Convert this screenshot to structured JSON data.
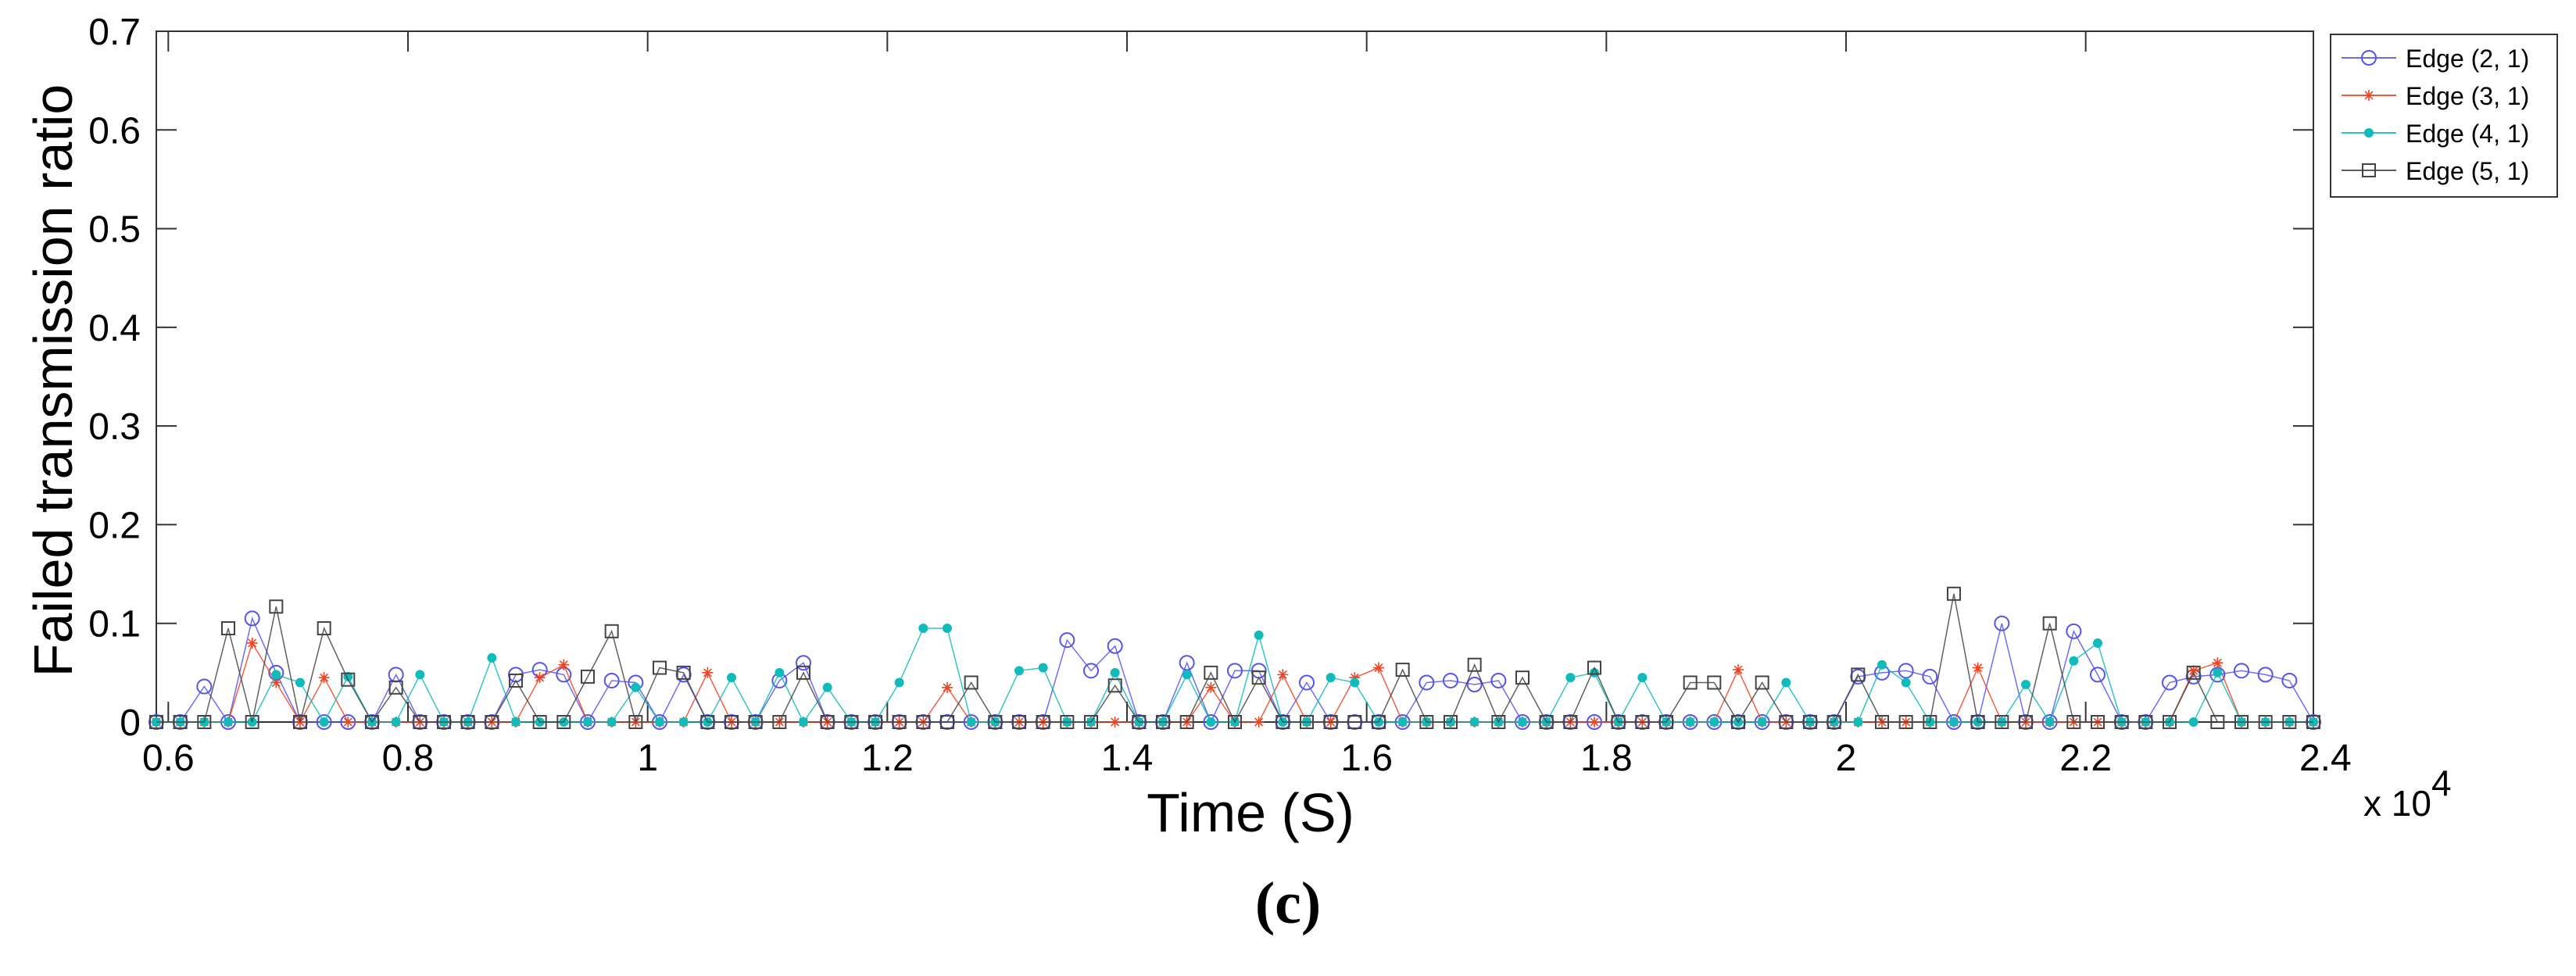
{
  "caption": "(c)",
  "chart_data": {
    "type": "line",
    "xlabel": "Time (S)",
    "ylabel": "Failed transmission ratio",
    "x_multiplier_label": "x 10",
    "x_multiplier_exponent": "4",
    "xlim": [
      0.59,
      2.39
    ],
    "ylim": [
      0,
      0.7
    ],
    "x_ticks": [
      0.6,
      0.8,
      1,
      1.2,
      1.4,
      1.6,
      1.8,
      2,
      2.2,
      2.4
    ],
    "x_tick_labels": [
      "0.6",
      "0.8",
      "1",
      "1.2",
      "1.4",
      "1.6",
      "1.8",
      "2",
      "2.2",
      "2.4"
    ],
    "y_ticks": [
      0,
      0.1,
      0.2,
      0.3,
      0.4,
      0.5,
      0.6,
      0.7
    ],
    "y_tick_labels": [
      "0",
      "0.1",
      "0.2",
      "0.3",
      "0.4",
      "0.5",
      "0.6",
      "0.7"
    ],
    "grid": false,
    "legend_position": "outside top-right",
    "x": [
      0.59,
      0.61,
      0.63,
      0.65,
      0.67,
      0.69,
      0.71,
      0.73,
      0.75,
      0.77,
      0.79,
      0.81,
      0.83,
      0.85,
      0.87,
      0.89,
      0.91,
      0.93,
      0.95,
      0.97,
      0.99,
      1.01,
      1.03,
      1.05,
      1.07,
      1.09,
      1.11,
      1.13,
      1.15,
      1.17,
      1.19,
      1.21,
      1.23,
      1.25,
      1.27,
      1.29,
      1.31,
      1.33,
      1.35,
      1.37,
      1.39,
      1.41,
      1.43,
      1.45,
      1.47,
      1.49,
      1.51,
      1.53,
      1.55,
      1.57,
      1.59,
      1.61,
      1.63,
      1.65,
      1.67,
      1.69,
      1.71,
      1.73,
      1.75,
      1.77,
      1.79,
      1.81,
      1.83,
      1.85,
      1.87,
      1.89,
      1.91,
      1.93,
      1.95,
      1.97,
      1.99,
      2.01,
      2.03,
      2.05,
      2.07,
      2.09,
      2.11,
      2.13,
      2.15,
      2.17,
      2.19,
      2.21,
      2.23,
      2.25,
      2.27,
      2.29,
      2.31,
      2.33,
      2.35,
      2.37,
      2.39
    ],
    "series": [
      {
        "name": "Edge (2, 1)",
        "color": "#5555ee",
        "marker": "circle",
        "values": [
          0,
          0,
          0.036,
          0,
          0.105,
          0.05,
          0,
          0,
          0,
          0,
          0.048,
          0,
          0,
          0,
          0,
          0.048,
          0.053,
          0.048,
          0,
          0.042,
          0.04,
          0,
          0.048,
          0,
          0,
          0,
          0.042,
          0.06,
          0,
          0,
          0,
          0,
          0,
          0,
          0,
          0,
          0,
          0,
          0.083,
          0.052,
          0.077,
          0,
          0,
          0.06,
          0,
          0.052,
          0.052,
          0,
          0.04,
          0,
          0,
          0,
          0,
          0.04,
          0.042,
          0.038,
          0.042,
          0,
          0,
          0,
          0,
          0,
          0,
          0,
          0,
          0,
          0,
          0,
          0,
          0,
          0,
          0.046,
          0.05,
          0.052,
          0.046,
          0,
          0,
          0.1,
          0,
          0,
          0.092,
          0.048,
          0,
          0,
          0.04,
          0.046,
          0.048,
          0.052,
          0.048,
          0.042,
          0
        ]
      },
      {
        "name": "Edge (3, 1)",
        "color": "#ee4422",
        "marker": "star",
        "values": [
          0,
          0,
          0,
          0,
          0.08,
          0.04,
          0,
          0.045,
          0,
          0,
          0,
          0,
          0,
          0,
          0,
          0,
          0.045,
          0.058,
          0,
          0,
          0,
          0,
          0,
          0.05,
          0,
          0,
          0,
          0,
          0,
          0,
          0,
          0,
          0,
          0.035,
          0,
          0,
          0,
          0,
          0,
          0,
          0,
          0,
          0,
          0,
          0.035,
          0,
          0,
          0.048,
          0,
          0,
          0.045,
          0.055,
          0,
          0,
          0,
          0,
          0,
          0,
          0,
          0,
          0,
          0,
          0,
          0,
          0,
          0,
          0.053,
          0,
          0,
          0,
          0,
          0,
          0,
          0,
          0,
          0,
          0.055,
          0,
          0,
          0,
          0,
          0,
          0,
          0,
          0,
          0.052,
          0.06,
          0,
          0,
          0,
          0
        ]
      },
      {
        "name": "Edge (4, 1)",
        "color": "#11bbbb",
        "marker": "dot",
        "values": [
          0,
          0,
          0,
          0,
          0,
          0.048,
          0.04,
          0,
          0.046,
          0,
          0,
          0.048,
          0,
          0,
          0.065,
          0,
          0,
          0,
          0,
          0,
          0.035,
          0,
          0,
          0,
          0.045,
          0,
          0.05,
          0,
          0.035,
          0,
          0,
          0.04,
          0.095,
          0.095,
          0,
          0,
          0.052,
          0.055,
          0,
          0,
          0.05,
          0,
          0,
          0.048,
          0,
          0,
          0.088,
          0,
          0,
          0.045,
          0.04,
          0,
          0,
          0,
          0,
          0,
          0,
          0,
          0,
          0.045,
          0.05,
          0,
          0.045,
          0,
          0,
          0,
          0,
          0,
          0.04,
          0,
          0,
          0,
          0.058,
          0.04,
          0,
          0,
          0,
          0,
          0.038,
          0,
          0.062,
          0.08,
          0,
          0,
          0,
          0,
          0.05,
          0,
          0,
          0,
          0
        ]
      },
      {
        "name": "Edge (5, 1)",
        "color": "#444444",
        "marker": "square",
        "values": [
          0,
          0,
          0,
          0.095,
          0,
          0.117,
          0,
          0.095,
          0.043,
          0,
          0.035,
          0,
          0,
          0,
          0,
          0.042,
          0,
          0,
          0.046,
          0.092,
          0,
          0.055,
          0.05,
          0,
          0,
          0,
          0,
          0.05,
          0,
          0,
          0,
          0,
          0,
          0,
          0.04,
          0,
          0,
          0,
          0,
          0,
          0.037,
          0,
          0,
          0,
          0.05,
          0,
          0.045,
          0,
          0,
          0,
          0,
          0,
          0.053,
          0,
          0,
          0.058,
          0,
          0.045,
          0,
          0,
          0.055,
          0,
          0,
          0,
          0.04,
          0.04,
          0,
          0.04,
          0,
          0,
          0,
          0.048,
          0,
          0,
          0,
          0.13,
          0,
          0,
          0,
          0.1,
          0,
          0,
          0,
          0,
          0,
          0.05,
          0,
          0,
          0,
          0,
          0
        ]
      }
    ]
  }
}
